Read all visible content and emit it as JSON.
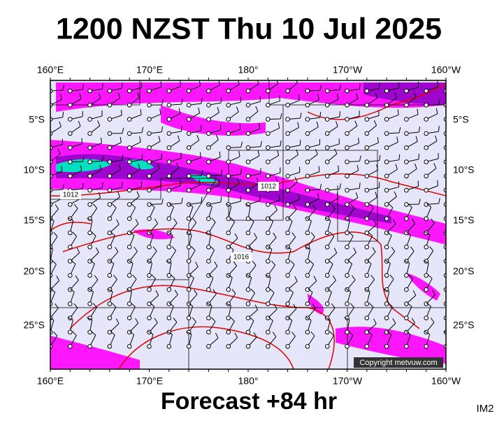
{
  "header": {
    "title": "1200 NZST Thu 10 Jul 2025"
  },
  "map": {
    "lon_labels": [
      "160°E",
      "170°E",
      "180°",
      "170°W",
      "160°W"
    ],
    "lat_labels": [
      "5°S",
      "10°S",
      "15°S",
      "20°S",
      "25°S"
    ],
    "isobar_labels": [
      "1012",
      "1012",
      "1016"
    ],
    "copyright": "Copyright metvuw.com"
  },
  "footer": {
    "forecast": "Forecast +84 hr",
    "code": "IM2"
  }
}
